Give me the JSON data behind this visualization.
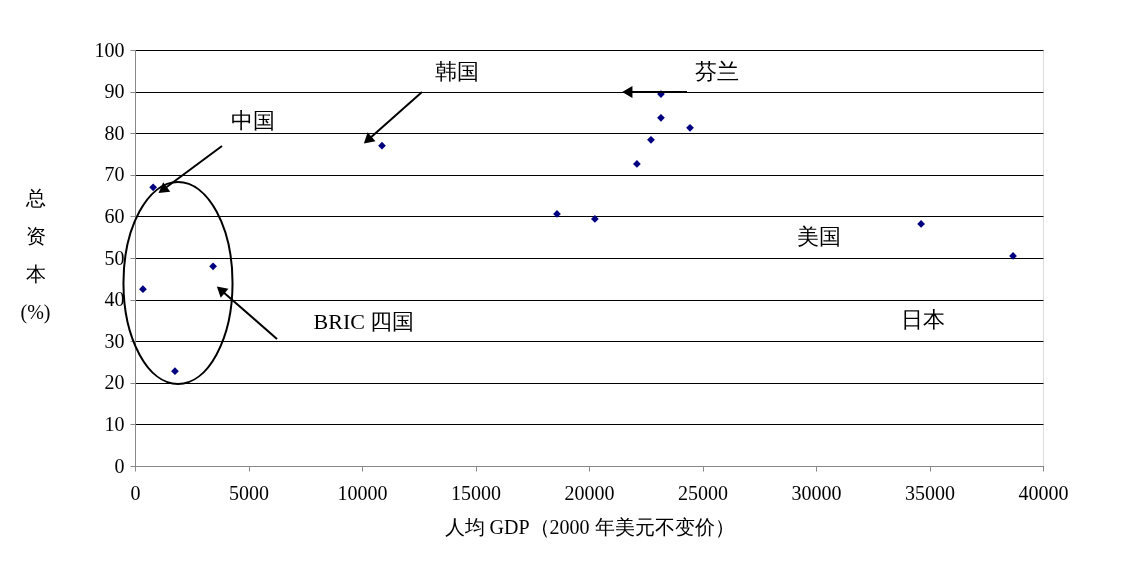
{
  "chart_data": {
    "type": "scatter",
    "xlabel": "人均 GDP（2000 年美元不变价）",
    "ylabel": "总资本(%)",
    "x": [
      350,
      800,
      1760,
      3440,
      10880,
      18590,
      20260,
      22110,
      22730,
      23170,
      23170,
      24450,
      34630,
      38680
    ],
    "series": [
      {
        "color": "#000080",
        "values": [
          42.5,
          67,
          22.8,
          48,
          77,
          60.6,
          59.4,
          72.6,
          78.4,
          89.4,
          83.7,
          81.3,
          58.2,
          50.5
        ]
      }
    ],
    "xlim": [
      0,
      40000
    ],
    "xticks": [
      0,
      5000,
      10000,
      15000,
      20000,
      25000,
      30000,
      35000,
      40000
    ],
    "ylim": [
      0,
      100
    ],
    "yticks": [
      0,
      10,
      20,
      30,
      40,
      50,
      60,
      70,
      80,
      90,
      100
    ],
    "grid": "y",
    "marker": "diamond",
    "legend": false,
    "annotations": [
      "中国",
      "韩国",
      "芬兰",
      "美国",
      "日本",
      "BRIC 四国"
    ]
  }
}
